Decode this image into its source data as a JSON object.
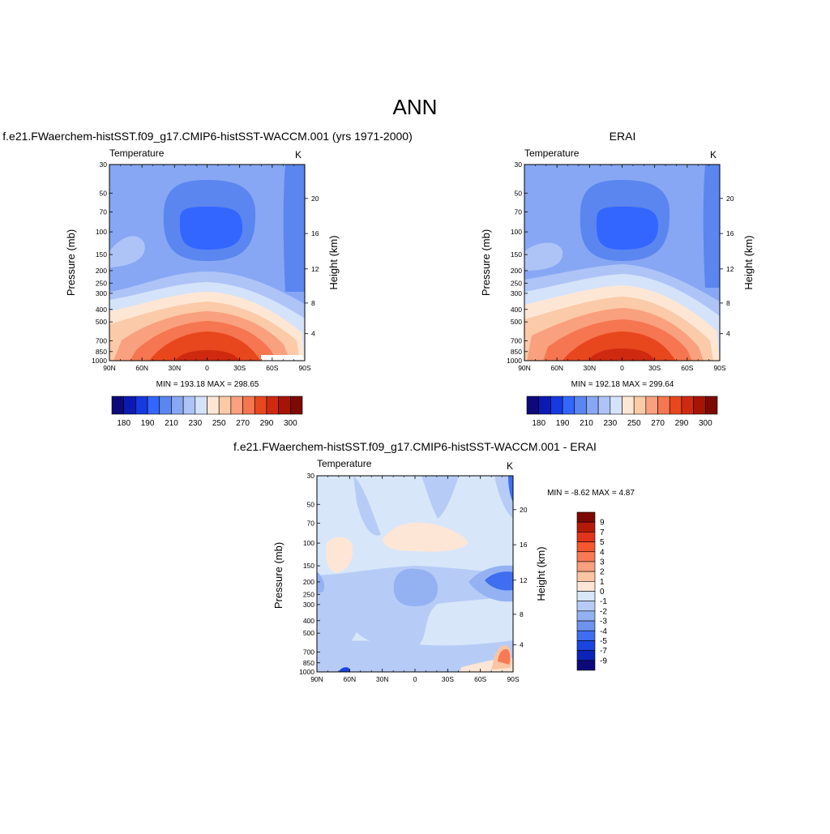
{
  "page": {
    "title": "ANN"
  },
  "panels": [
    {
      "key": "model",
      "case_title": "f.e21.FWaerchem-histSST.f09_g17.CMIP6-histSST-WACCM.001 (yrs 1971-2000)",
      "variable": "Temperature",
      "units": "K",
      "stats_text": "MIN = 193.18  MAX = 298.65"
    },
    {
      "key": "obs",
      "case_title": "ERAI",
      "variable": "Temperature",
      "units": "K",
      "stats_text": "MIN = 192.18  MAX = 299.64"
    },
    {
      "key": "diff",
      "case_title": "f.e21.FWaerchem-histSST.f09_g17.CMIP6-histSST-WACCM.001 - ERAI",
      "variable": "Temperature",
      "units": "K",
      "stats_text": "MIN =  -8.62  MAX =   4.87"
    }
  ],
  "axes": {
    "y_left_label": "Pressure (mb)",
    "y_right_label": "Height (km)",
    "pressure_ticks": [
      "30",
      "50",
      "70",
      "100",
      "150",
      "200",
      "250",
      "300",
      "400",
      "500",
      "700",
      "850",
      "1000"
    ],
    "pressure_values": [
      30,
      50,
      70,
      100,
      150,
      200,
      250,
      300,
      400,
      500,
      700,
      850,
      1000
    ],
    "height_ticks_main": [
      "20",
      "16",
      "12",
      "8",
      "4"
    ],
    "x_ticks": [
      "90N",
      "60N",
      "30N",
      "0",
      "30S",
      "60S",
      "90S"
    ]
  },
  "colorbars": {
    "abs_labels": [
      "180",
      "190",
      "210",
      "230",
      "250",
      "270",
      "290",
      "300"
    ],
    "abs_colors": [
      "#0c0a78",
      "#0b1ab3",
      "#1639e0",
      "#3366ff",
      "#5b86f0",
      "#87a7f4",
      "#aec4f7",
      "#d5e3fa",
      "#fde7d4",
      "#fbcaa8",
      "#f9a07e",
      "#f57650",
      "#e8471e",
      "#cf2a10",
      "#a61405",
      "#7c0a02"
    ],
    "diff_labels": [
      "9",
      "7",
      "5",
      "4",
      "3",
      "2",
      "1",
      "0",
      "-1",
      "-2",
      "-3",
      "-4",
      "-5",
      "-7",
      "-9"
    ],
    "diff_colors": [
      "#7c0a02",
      "#b51a07",
      "#e0351a",
      "#f5572e",
      "#f77a55",
      "#f9a07e",
      "#fbc4a2",
      "#fde6d6",
      "#d8e6fa",
      "#b6ccf6",
      "#94b2f2",
      "#6d93ee",
      "#3f6ef0",
      "#1b45e0",
      "#0b23b8",
      "#0c0a7a"
    ]
  },
  "chart_data": [
    {
      "type": "heatmap",
      "title": "f.e21.FWaerchem-histSST.f09_g17.CMIP6-histSST-WACCM.001 (yrs 1971-2000)",
      "variable": "Temperature",
      "units": "K",
      "xlabel": "",
      "ylabel": "Pressure (mb)",
      "ylabel_right": "Height (km)",
      "x_ticks": [
        "90N",
        "60N",
        "30N",
        "0",
        "30S",
        "60S",
        "90S"
      ],
      "y_ticks": [
        30,
        50,
        70,
        100,
        150,
        200,
        250,
        300,
        400,
        500,
        700,
        850,
        1000
      ],
      "y_scale": "log",
      "min": 193.18,
      "max": 298.65,
      "contour_levels": [
        180,
        190,
        200,
        210,
        220,
        230,
        240,
        250,
        260,
        270,
        280,
        290,
        295,
        300
      ]
    },
    {
      "type": "heatmap",
      "title": "ERAI",
      "variable": "Temperature",
      "units": "K",
      "xlabel": "",
      "ylabel": "Pressure (mb)",
      "ylabel_right": "Height (km)",
      "x_ticks": [
        "90N",
        "60N",
        "30N",
        "0",
        "30S",
        "60S",
        "90S"
      ],
      "y_ticks": [
        30,
        50,
        70,
        100,
        150,
        200,
        250,
        300,
        400,
        500,
        700,
        850,
        1000
      ],
      "y_scale": "log",
      "min": 192.18,
      "max": 299.64,
      "contour_levels": [
        180,
        190,
        200,
        210,
        220,
        230,
        240,
        250,
        260,
        270,
        280,
        290,
        295,
        300
      ]
    },
    {
      "type": "heatmap",
      "title": "f.e21.FWaerchem-histSST.f09_g17.CMIP6-histSST-WACCM.001 - ERAI",
      "variable": "Temperature",
      "units": "K",
      "xlabel": "",
      "ylabel": "Pressure (mb)",
      "ylabel_right": "Height (km)",
      "x_ticks": [
        "90N",
        "60N",
        "30N",
        "0",
        "30S",
        "60S",
        "90S"
      ],
      "y_ticks": [
        30,
        50,
        70,
        100,
        150,
        200,
        250,
        300,
        400,
        500,
        700,
        850,
        1000
      ],
      "y_scale": "log",
      "min": -8.62,
      "max": 4.87,
      "contour_levels": [
        -9,
        -7,
        -5,
        -4,
        -3,
        -2,
        -1,
        0,
        1,
        2,
        3,
        4,
        5,
        7,
        9
      ]
    }
  ]
}
